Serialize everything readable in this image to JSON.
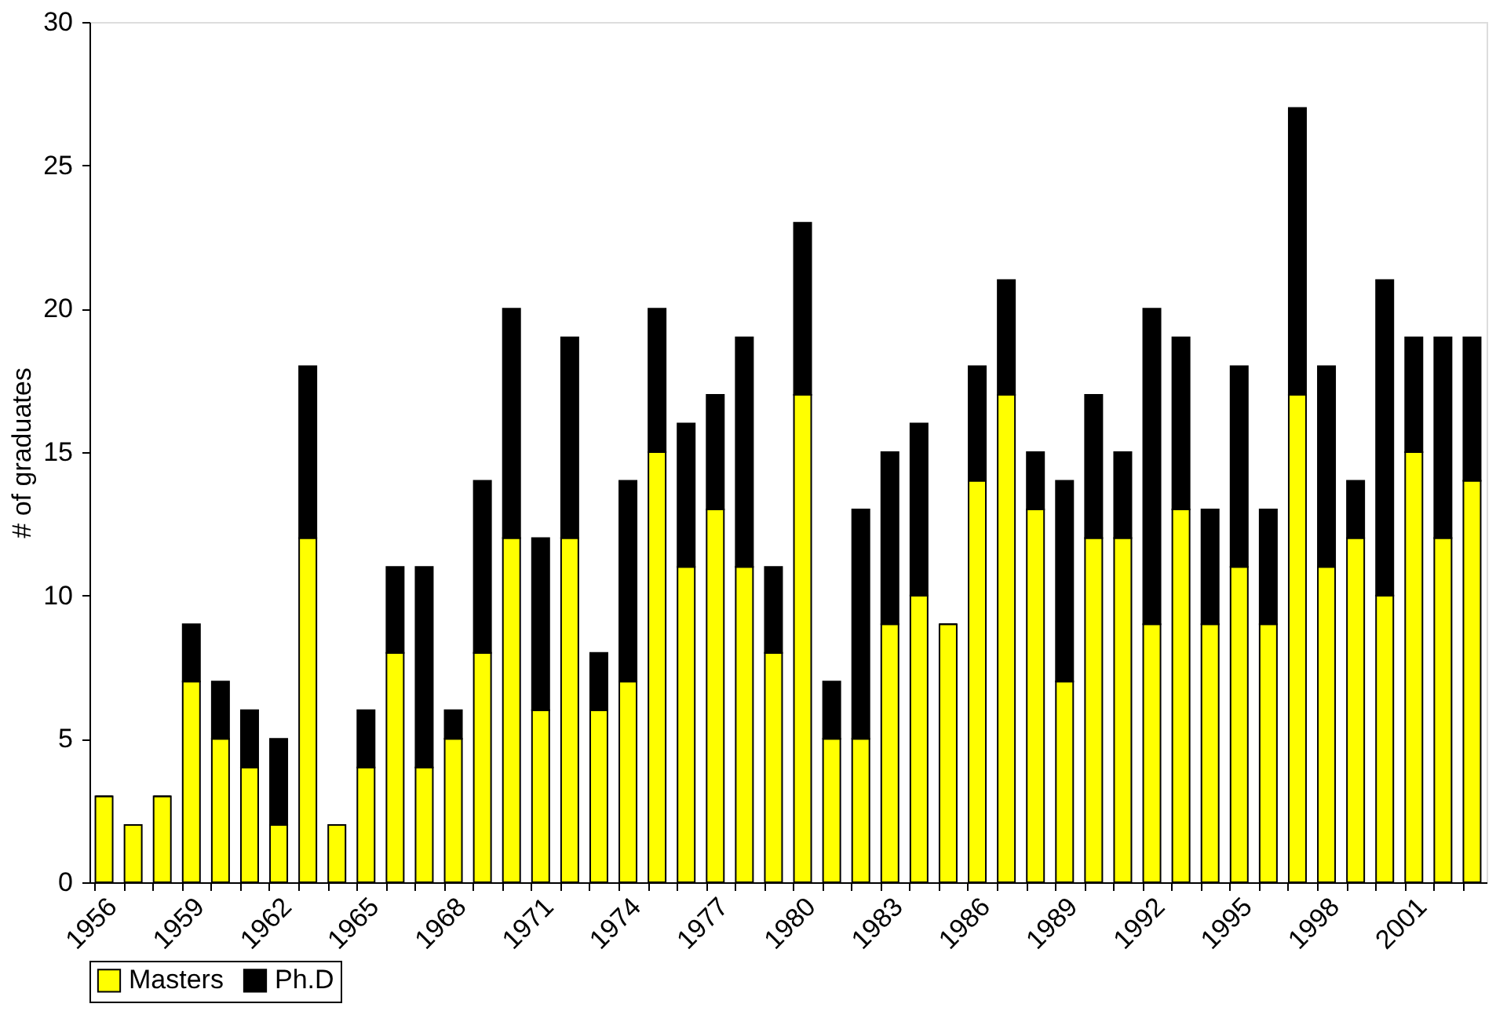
{
  "chart_data": {
    "type": "bar",
    "stacked": true,
    "ylabel": "# of graduates",
    "categories": [
      "1956",
      null,
      null,
      "1959",
      null,
      null,
      "1962",
      null,
      null,
      "1965",
      null,
      null,
      "1968",
      null,
      null,
      "1971",
      null,
      null,
      "1974",
      null,
      null,
      "1977",
      null,
      null,
      "1980",
      null,
      null,
      "1983",
      null,
      null,
      "1986",
      null,
      null,
      "1989",
      null,
      null,
      "1992",
      null,
      null,
      "1995",
      null,
      null,
      "1998",
      null,
      null,
      "2001",
      null,
      null
    ],
    "series": [
      {
        "name": "Masters",
        "color": "#ffff00",
        "values": [
          3,
          2,
          3,
          7,
          5,
          4,
          2,
          12,
          2,
          4,
          8,
          4,
          5,
          8,
          12,
          6,
          12,
          6,
          7,
          15,
          11,
          13,
          11,
          8,
          17,
          5,
          5,
          9,
          10,
          9,
          14,
          17,
          13,
          7,
          12,
          12,
          9,
          13,
          9,
          11,
          9,
          17,
          11,
          12,
          10,
          15,
          12,
          14
        ]
      },
      {
        "name": "Ph.D",
        "color": "#000000",
        "values": [
          0,
          0,
          0,
          2,
          2,
          2,
          3,
          6,
          0,
          2,
          3,
          7,
          1,
          6,
          8,
          6,
          7,
          2,
          7,
          5,
          5,
          4,
          8,
          3,
          6,
          2,
          8,
          6,
          6,
          0,
          4,
          4,
          2,
          7,
          5,
          3,
          11,
          6,
          4,
          7,
          4,
          10,
          7,
          2,
          11,
          4,
          7,
          5
        ]
      }
    ],
    "ylim": [
      0,
      30
    ],
    "yticks": [
      0,
      5,
      10,
      15,
      20,
      25,
      30
    ],
    "grid": false,
    "legend": "bottom"
  }
}
